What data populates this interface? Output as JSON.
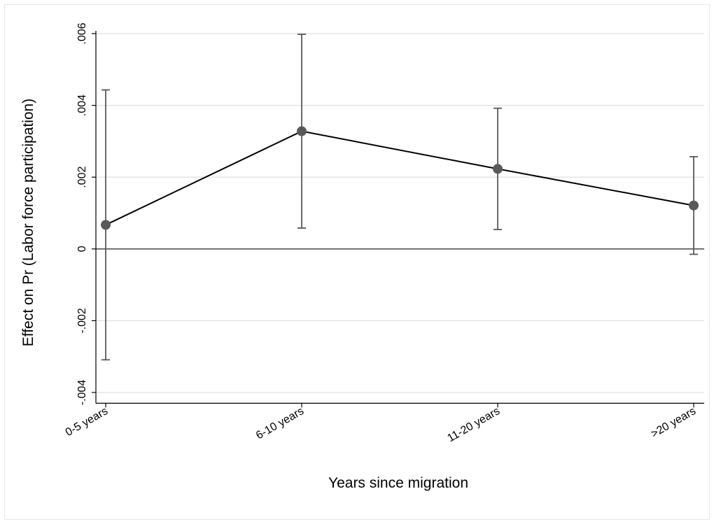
{
  "chart_data": {
    "type": "line",
    "xlabel": "Years since migration",
    "ylabel": "Effect on Pr (Labor force participation)",
    "categories": [
      "0-5 years",
      "6-10 years",
      "11-20 years",
      ">20 years"
    ],
    "series": [
      {
        "values": [
          0.00067,
          0.00328,
          0.00223,
          0.00121
        ],
        "ci_lower": [
          -0.00309,
          0.00058,
          0.00054,
          -0.00015
        ],
        "ci_upper": [
          0.00443,
          0.00598,
          0.00392,
          0.00257
        ]
      }
    ],
    "yticks": [
      -0.004,
      -0.002,
      0,
      0.002,
      0.004,
      0.006
    ],
    "ytick_labels": [
      "-.004",
      "-.002",
      "0",
      ".002",
      ".004",
      ".006"
    ],
    "ylim": [
      -0.0043,
      0.006
    ],
    "grid": true,
    "reference_line_y": 0,
    "colors": {
      "line": "#000000",
      "marker": "#595959",
      "errorbar": "#595959",
      "grid": "#e5e5e5"
    }
  }
}
